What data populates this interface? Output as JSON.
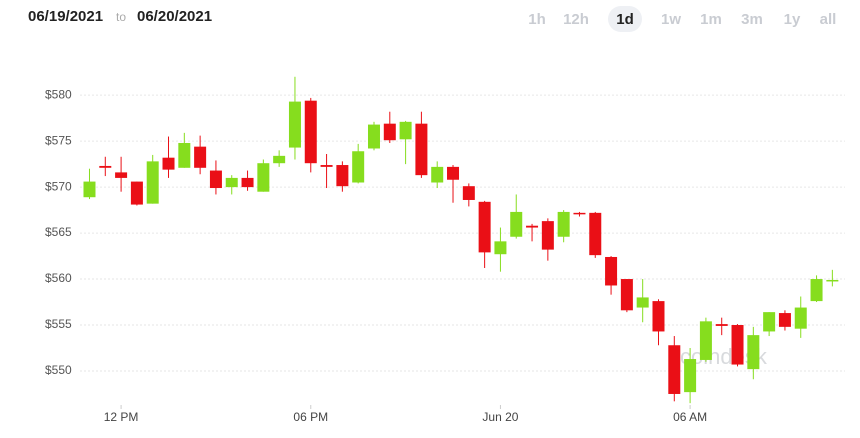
{
  "header": {
    "from": "06/19/2021",
    "to_word": "to",
    "to": "06/20/2021",
    "ranges": [
      "1h",
      "12h",
      "1d",
      "1w",
      "1m",
      "3m",
      "1y",
      "all"
    ],
    "selected_range": "1d"
  },
  "chart_data": {
    "type": "candlestick",
    "watermark": "coindesk",
    "up_color": "#86dd1e",
    "down_color": "#ea0f16",
    "grid": true,
    "x": [
      11,
      11.5,
      12,
      12.5,
      13,
      13.5,
      14,
      14.5,
      15,
      15.5,
      16,
      16.5,
      17,
      17.5,
      18,
      18.5,
      19,
      19.5,
      20,
      20.5,
      21,
      21.5,
      22,
      22.5,
      23,
      23.5,
      24,
      24.5,
      25,
      25.5,
      26,
      26.5,
      27,
      27.5,
      28,
      28.5,
      29,
      29.5,
      30,
      30.5,
      31,
      31.5,
      32,
      32.5,
      33,
      33.5,
      34,
      34.5
    ],
    "open": [
      568.9,
      572.3,
      571.6,
      570.6,
      568.2,
      573.2,
      572.1,
      574.4,
      571.8,
      570.0,
      571.0,
      569.5,
      572.6,
      574.3,
      579.4,
      572.4,
      572.4,
      570.5,
      574.2,
      576.9,
      575.2,
      576.9,
      570.5,
      572.2,
      570.1,
      568.4,
      562.7,
      564.6,
      565.8,
      566.3,
      564.6,
      567.2,
      567.2,
      562.4,
      560.0,
      556.9,
      557.6,
      552.8,
      547.7,
      551.2,
      555.1,
      555.0,
      550.2,
      554.3,
      556.3,
      554.6,
      557.6,
      559.8
    ],
    "high": [
      572.0,
      573.3,
      573.3,
      570.6,
      573.5,
      575.5,
      575.9,
      575.6,
      572.9,
      571.3,
      571.8,
      573.0,
      574.0,
      582.0,
      579.7,
      573.6,
      572.8,
      574.7,
      577.1,
      578.2,
      577.2,
      578.2,
      572.8,
      572.4,
      570.4,
      568.5,
      565.6,
      569.2,
      566.0,
      566.6,
      567.5,
      567.3,
      567.3,
      562.5,
      560.0,
      560.0,
      557.8,
      553.8,
      552.5,
      555.8,
      555.8,
      555.1,
      554.8,
      556.4,
      556.6,
      558.1,
      560.4,
      561.0
    ],
    "low": [
      568.7,
      571.2,
      569.5,
      568.0,
      568.2,
      571.0,
      572.1,
      571.4,
      569.2,
      569.2,
      569.6,
      569.5,
      572.2,
      573.0,
      571.6,
      569.9,
      569.5,
      570.4,
      574.0,
      574.8,
      572.5,
      571.0,
      569.9,
      568.3,
      567.9,
      561.2,
      560.8,
      564.4,
      564.1,
      562.0,
      564.0,
      566.8,
      562.3,
      558.3,
      556.4,
      555.3,
      552.8,
      546.7,
      546.5,
      551.0,
      553.9,
      550.5,
      549.1,
      553.8,
      554.4,
      553.6,
      557.5,
      559.2
    ],
    "close": [
      570.6,
      572.1,
      571.0,
      568.1,
      572.8,
      571.9,
      574.8,
      572.1,
      569.9,
      571.0,
      570.0,
      572.6,
      573.4,
      579.3,
      572.6,
      572.2,
      570.1,
      573.9,
      576.8,
      575.1,
      577.1,
      571.3,
      572.2,
      570.8,
      568.6,
      562.9,
      564.1,
      567.3,
      565.6,
      563.2,
      567.3,
      567.1,
      562.6,
      559.3,
      556.6,
      558.0,
      554.3,
      547.5,
      551.3,
      555.4,
      554.9,
      550.7,
      553.9,
      556.4,
      554.8,
      556.9,
      560.0,
      559.9
    ],
    "xlim": [
      10.7,
      34.9
    ],
    "xticks": [
      {
        "value": 12,
        "label": "12 PM"
      },
      {
        "value": 18,
        "label": "06 PM"
      },
      {
        "value": 24,
        "label": "Jun 20"
      },
      {
        "value": 30,
        "label": "06 AM"
      }
    ],
    "ylim": [
      546.3,
      586
    ],
    "yticks": [
      {
        "value": 550,
        "label": "$550"
      },
      {
        "value": 555,
        "label": "$555"
      },
      {
        "value": 560,
        "label": "$560"
      },
      {
        "value": 565,
        "label": "$565"
      },
      {
        "value": 570,
        "label": "$570"
      },
      {
        "value": 575,
        "label": "$575"
      },
      {
        "value": 580,
        "label": "$580"
      }
    ]
  }
}
